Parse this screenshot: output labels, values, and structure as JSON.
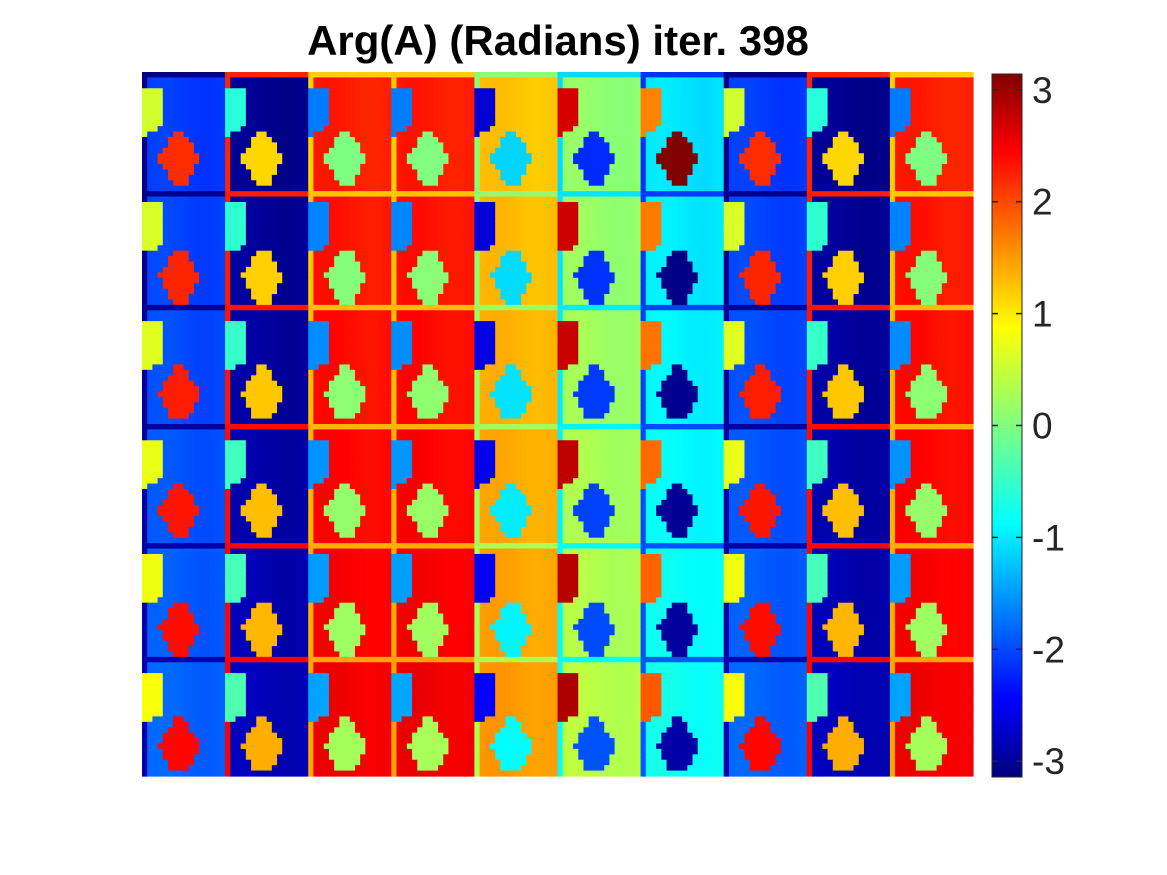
{
  "chart_data": {
    "type": "heatmap",
    "title": "Arg(A) (Radians) iter. 398",
    "xlabel": "",
    "ylabel": "",
    "colormap": "jet",
    "axes_visible": false,
    "grid": false,
    "color_range": [
      -3.14159,
      3.14159
    ],
    "tile_grid": {
      "rows": 6,
      "cols": 10
    },
    "column_phase_steps": [
      -1,
      -2,
      -3,
      3,
      2,
      1,
      0,
      -1,
      -2,
      -3
    ],
    "colorbar": {
      "position": "right",
      "ticks": [
        3,
        2,
        1,
        0,
        -1,
        -2,
        -3
      ],
      "tick_labels": [
        "3",
        "2",
        "1",
        "0",
        "-1",
        "-2",
        "-3"
      ]
    }
  }
}
